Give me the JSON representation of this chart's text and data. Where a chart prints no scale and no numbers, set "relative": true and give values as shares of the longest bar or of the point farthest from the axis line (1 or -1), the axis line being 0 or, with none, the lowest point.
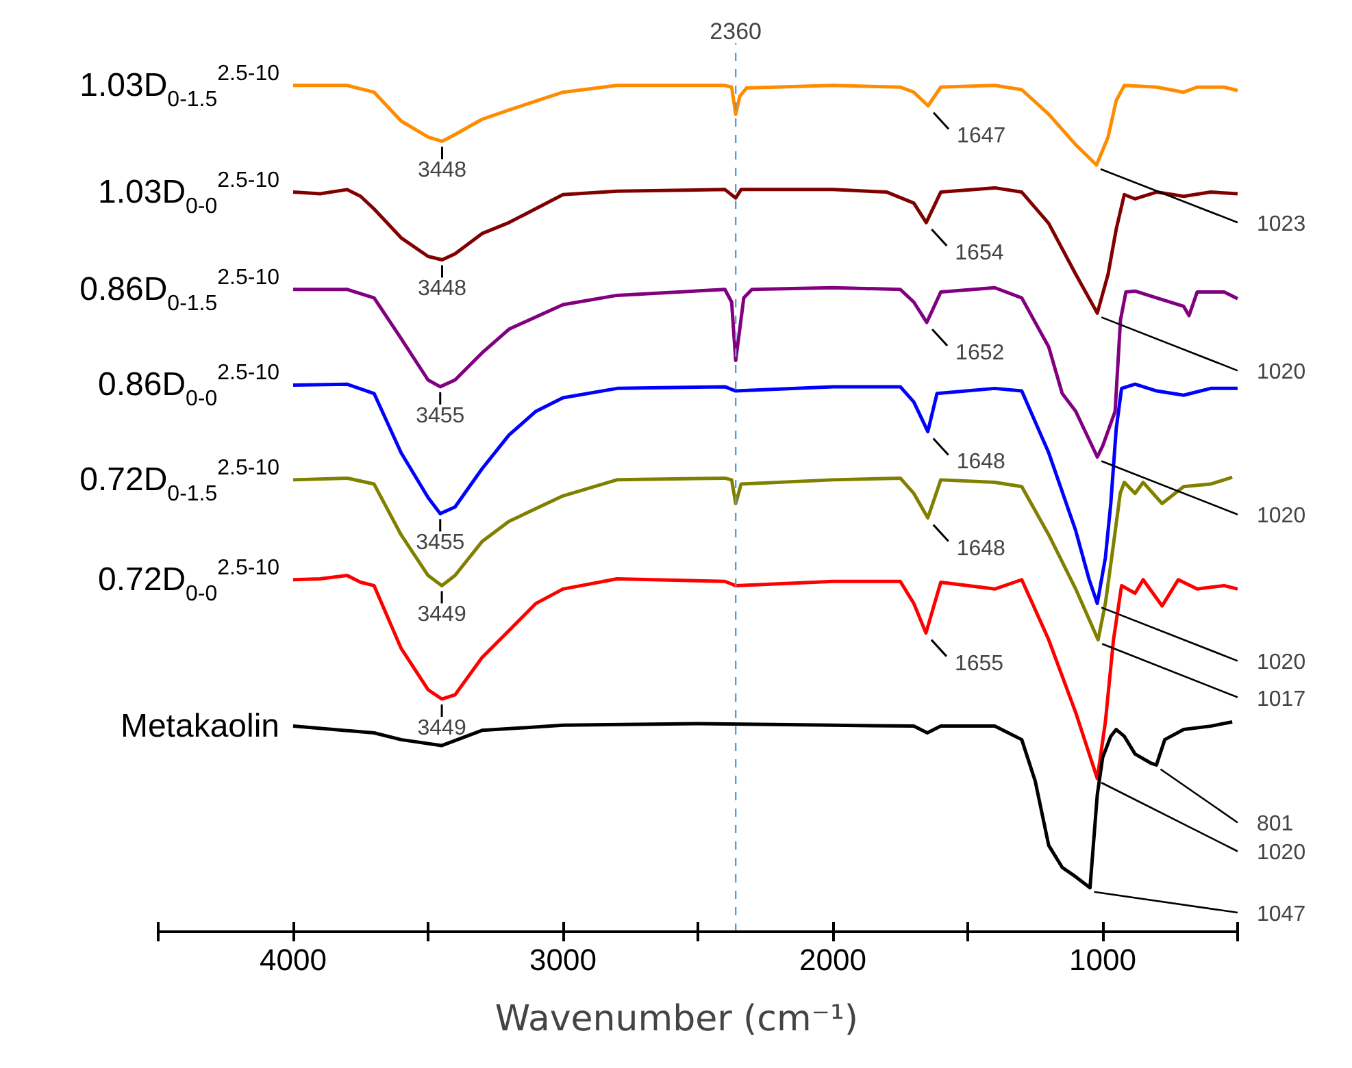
{
  "chart_data": {
    "type": "line",
    "relative": true,
    "xlabel": "Wavenumber (cm⁻¹)",
    "xlim": [
      4500,
      500
    ],
    "xticks": [
      {
        "value": 4500,
        "label": null
      },
      4000,
      {
        "value": 3500,
        "label": null
      },
      3000,
      {
        "value": 2500,
        "label": null
      },
      2000,
      {
        "value": 1500,
        "label": null
      },
      1000,
      {
        "value": 500,
        "label": null
      }
    ],
    "series": [
      {
        "name": "1.03D$_{0-1.5}$$^{2.5-10}$",
        "color": "#ff8c00",
        "x": [
          4000,
          3800,
          3700,
          3600,
          3500,
          3448,
          3400,
          3300,
          3200,
          3000,
          2800,
          2400,
          2375,
          2360,
          2345,
          2320,
          2000,
          1750,
          1700,
          1647,
          1600,
          1400,
          1300,
          1200,
          1100,
          1023,
          980,
          950,
          920,
          800,
          700,
          650,
          550,
          500
        ],
        "values": [
          1.0,
          1.0,
          0.992,
          0.958,
          0.939,
          0.934,
          0.942,
          0.96,
          0.971,
          0.992,
          1.0,
          1.0,
          0.998,
          0.966,
          0.987,
          0.997,
          1.0,
          0.998,
          0.992,
          0.976,
          0.998,
          1.0,
          0.995,
          0.966,
          0.93,
          0.906,
          0.939,
          0.982,
          1.0,
          0.998,
          0.992,
          0.998,
          0.998,
          0.994
        ]
      },
      {
        "name": "1.03D$_{0-0}$$^{2.5-10}$",
        "color": "#800000",
        "x": [
          4000,
          3900,
          3800,
          3750,
          3700,
          3600,
          3500,
          3448,
          3400,
          3300,
          3200,
          3000,
          2800,
          2400,
          2360,
          2340,
          2000,
          1800,
          1700,
          1654,
          1600,
          1400,
          1300,
          1200,
          1100,
          1020,
          980,
          950,
          920,
          880,
          800,
          700,
          600,
          500
        ],
        "values": [
          0.874,
          0.872,
          0.877,
          0.869,
          0.854,
          0.82,
          0.798,
          0.794,
          0.801,
          0.825,
          0.838,
          0.871,
          0.875,
          0.877,
          0.867,
          0.877,
          0.877,
          0.874,
          0.861,
          0.838,
          0.874,
          0.879,
          0.874,
          0.837,
          0.777,
          0.731,
          0.777,
          0.83,
          0.871,
          0.866,
          0.874,
          0.869,
          0.874,
          0.872
        ]
      },
      {
        "name": "0.86D$_{0-1.5}$$^{2.5-10}$",
        "color": "#800080",
        "x": [
          4000,
          3800,
          3700,
          3600,
          3500,
          3455,
          3400,
          3300,
          3200,
          3000,
          2800,
          2400,
          2375,
          2360,
          2345,
          2330,
          2300,
          2000,
          1750,
          1700,
          1652,
          1600,
          1400,
          1300,
          1200,
          1150,
          1100,
          1020,
          1000,
          954,
          934,
          914,
          880,
          800,
          700,
          680,
          650,
          550,
          500
        ],
        "values": [
          0.759,
          0.759,
          0.749,
          0.701,
          0.652,
          0.644,
          0.652,
          0.684,
          0.712,
          0.741,
          0.752,
          0.759,
          0.744,
          0.675,
          0.712,
          0.749,
          0.759,
          0.761,
          0.759,
          0.744,
          0.72,
          0.756,
          0.761,
          0.749,
          0.691,
          0.636,
          0.615,
          0.561,
          0.574,
          0.615,
          0.723,
          0.756,
          0.757,
          0.749,
          0.739,
          0.728,
          0.756,
          0.756,
          0.748
        ]
      },
      {
        "name": "0.86D$_{0-0}$$^{2.5-10}$",
        "color": "#0000ff",
        "x": [
          4000,
          3800,
          3700,
          3600,
          3500,
          3455,
          3400,
          3300,
          3200,
          3100,
          3000,
          2800,
          2400,
          2360,
          2000,
          1750,
          1700,
          1648,
          1614,
          1400,
          1300,
          1200,
          1100,
          1050,
          1020,
          990,
          970,
          950,
          930,
          880,
          800,
          700,
          600,
          500
        ],
        "values": [
          0.646,
          0.647,
          0.636,
          0.566,
          0.513,
          0.494,
          0.502,
          0.547,
          0.587,
          0.615,
          0.631,
          0.642,
          0.644,
          0.639,
          0.644,
          0.644,
          0.626,
          0.591,
          0.636,
          0.642,
          0.639,
          0.566,
          0.474,
          0.416,
          0.388,
          0.442,
          0.506,
          0.594,
          0.642,
          0.647,
          0.639,
          0.634,
          0.642,
          0.642
        ]
      },
      {
        "name": "0.72D$_{0-1.5}$$^{2.5-10}$",
        "color": "#808000",
        "x": [
          4000,
          3800,
          3700,
          3600,
          3500,
          3449,
          3400,
          3300,
          3200,
          3000,
          2800,
          2400,
          2375,
          2360,
          2340,
          2000,
          1750,
          1700,
          1648,
          1600,
          1400,
          1300,
          1200,
          1100,
          1017,
          990,
          960,
          935,
          920,
          880,
          850,
          780,
          700,
          600,
          520
        ],
        "values": [
          0.534,
          0.536,
          0.529,
          0.469,
          0.421,
          0.409,
          0.421,
          0.461,
          0.485,
          0.515,
          0.534,
          0.536,
          0.534,
          0.506,
          0.529,
          0.534,
          0.536,
          0.518,
          0.489,
          0.534,
          0.531,
          0.526,
          0.469,
          0.405,
          0.345,
          0.388,
          0.458,
          0.518,
          0.531,
          0.518,
          0.531,
          0.506,
          0.526,
          0.529,
          0.537
        ]
      },
      {
        "name": "0.72D$_{0-0}$$^{2.5-10}$",
        "color": "#ff0000",
        "x": [
          4000,
          3900,
          3800,
          3750,
          3700,
          3650,
          3600,
          3500,
          3449,
          3400,
          3300,
          3200,
          3100,
          3000,
          2800,
          2400,
          2360,
          2000,
          1750,
          1700,
          1655,
          1600,
          1400,
          1300,
          1200,
          1100,
          1020,
          990,
          960,
          930,
          880,
          850,
          780,
          720,
          650,
          550,
          500
        ],
        "values": [
          0.416,
          0.417,
          0.421,
          0.413,
          0.409,
          0.372,
          0.335,
          0.286,
          0.275,
          0.28,
          0.324,
          0.356,
          0.388,
          0.405,
          0.417,
          0.414,
          0.409,
          0.414,
          0.414,
          0.388,
          0.353,
          0.413,
          0.405,
          0.416,
          0.345,
          0.259,
          0.181,
          0.248,
          0.345,
          0.409,
          0.4,
          0.416,
          0.385,
          0.416,
          0.405,
          0.409,
          0.405
        ]
      },
      {
        "name": "Metakaolin",
        "color": "#000000",
        "x": [
          4000,
          3700,
          3600,
          3450,
          3300,
          3000,
          2500,
          2000,
          1700,
          1650,
          1600,
          1400,
          1300,
          1250,
          1200,
          1150,
          1100,
          1047,
          1020,
          1000,
          970,
          950,
          920,
          880,
          820,
          801,
          770,
          700,
          600,
          520
        ],
        "values": [
          0.243,
          0.235,
          0.227,
          0.22,
          0.238,
          0.244,
          0.246,
          0.244,
          0.243,
          0.235,
          0.243,
          0.243,
          0.227,
          0.178,
          0.102,
          0.076,
          0.065,
          0.052,
          0.162,
          0.206,
          0.231,
          0.239,
          0.231,
          0.21,
          0.199,
          0.197,
          0.227,
          0.239,
          0.243,
          0.248
        ]
      }
    ],
    "ref_lines": [
      {
        "axis": "x",
        "value": 2360,
        "label": "2360",
        "color": "#5b9bd5",
        "line_style": "dashed"
      }
    ],
    "annotations": [
      {
        "text": "3448",
        "x": 3448,
        "y": 0.934
      },
      {
        "text": "1647",
        "x": 1647,
        "y": 0.976
      },
      {
        "text": "1023",
        "x": 1023,
        "y": 0.906
      },
      {
        "text": "3448",
        "x": 3448,
        "y": 0.794
      },
      {
        "text": "1654",
        "x": 1654,
        "y": 0.838
      },
      {
        "text": "1020",
        "x": 1020,
        "y": 0.731
      },
      {
        "text": "3455",
        "x": 3455,
        "y": 0.644
      },
      {
        "text": "1652",
        "x": 1652,
        "y": 0.72
      },
      {
        "text": "1020",
        "x": 1020,
        "y": 0.561
      },
      {
        "text": "3455",
        "x": 3455,
        "y": 0.494
      },
      {
        "text": "1648",
        "x": 1648,
        "y": 0.591
      },
      {
        "text": "1020",
        "x": 1020,
        "y": 0.388
      },
      {
        "text": "3449",
        "x": 3449,
        "y": 0.409
      },
      {
        "text": "1648",
        "x": 1648,
        "y": 0.489
      },
      {
        "text": "1017",
        "x": 1017,
        "y": 0.345
      },
      {
        "text": "3449",
        "x": 3449,
        "y": 0.275
      },
      {
        "text": "1655",
        "x": 1655,
        "y": 0.353
      },
      {
        "text": "1020",
        "x": 1020,
        "y": 0.181
      },
      {
        "text": "1047",
        "x": 1047,
        "y": 0.052
      },
      {
        "text": "801",
        "x": 801,
        "y": 0.197
      }
    ]
  }
}
